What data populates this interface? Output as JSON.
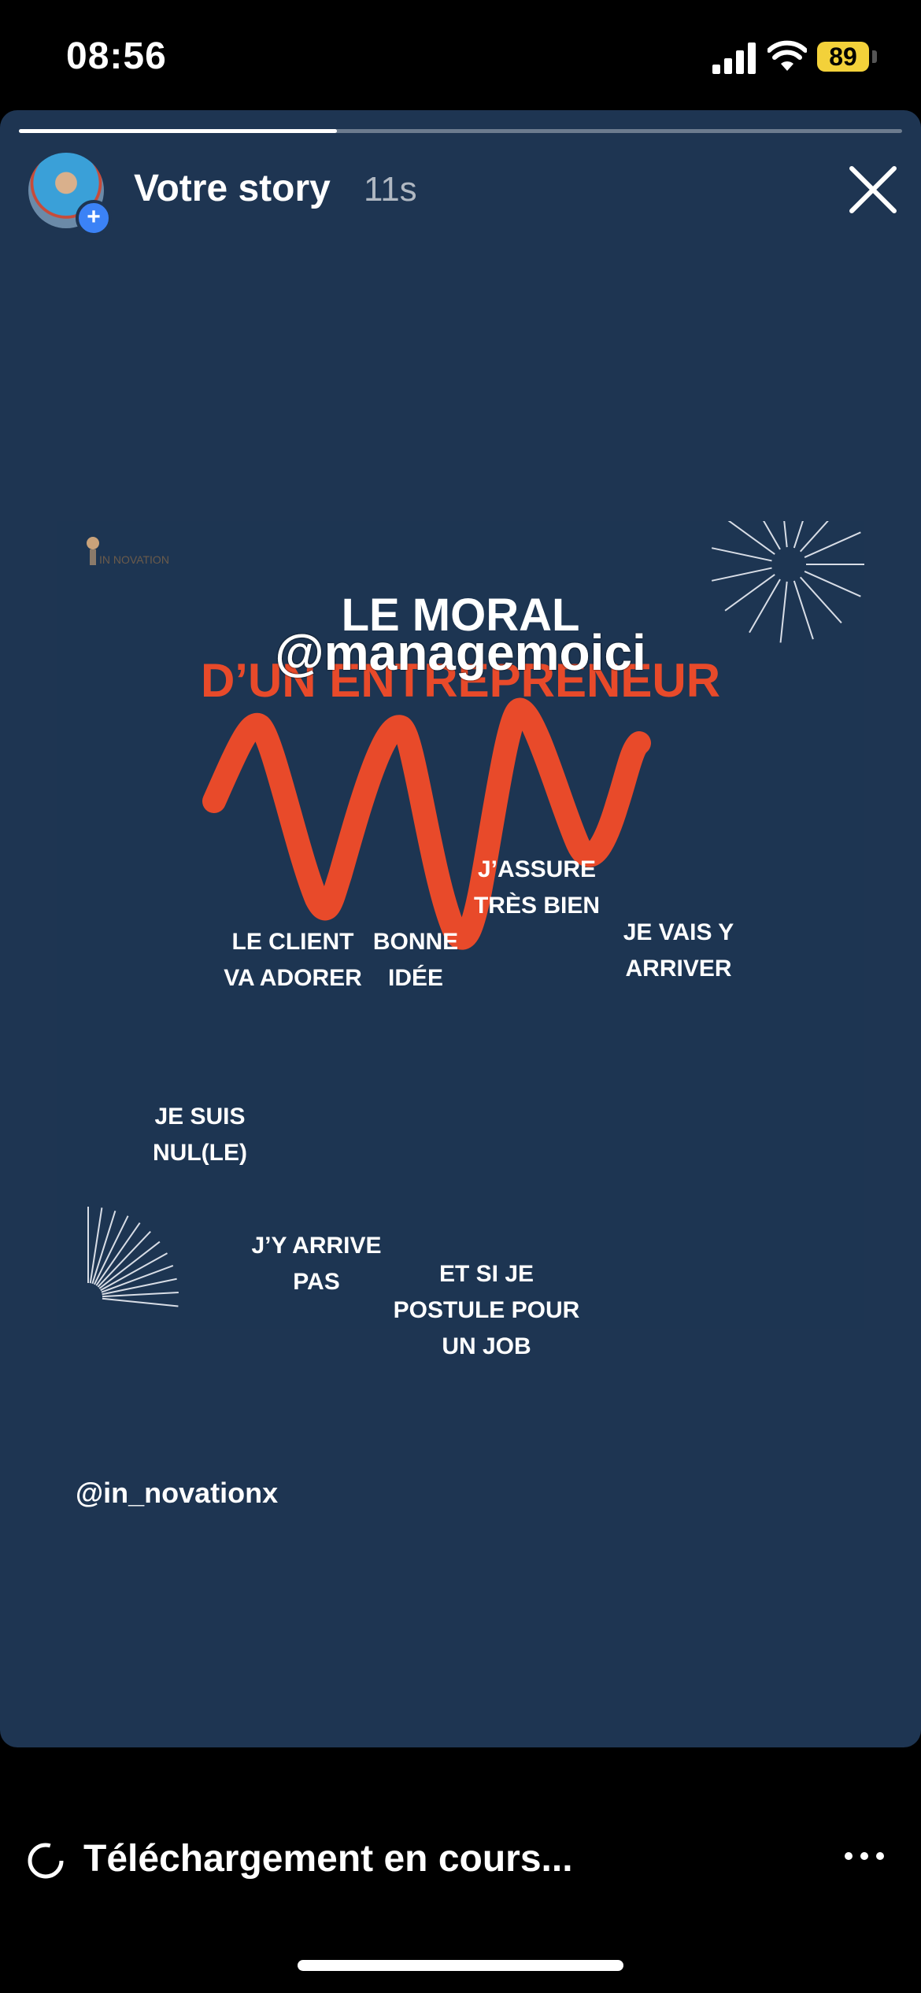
{
  "status": {
    "time": "08:56",
    "battery": "89"
  },
  "story": {
    "title": "Votre story",
    "age": "11s",
    "progress": 0.36,
    "avatar_plus": "+"
  },
  "post": {
    "brand": "IN NOVATION",
    "headline_1": "LE MORAL",
    "mention": "@managemoici",
    "headline_2": "D’UN ENTREPRENEUR",
    "labels": {
      "je_suis": [
        "JE SUIS",
        "NUL(LE)"
      ],
      "le_client": [
        "LE CLIENT",
        "VA ADORER"
      ],
      "jy_arrive": [
        "J’Y ARRIVE",
        "PAS"
      ],
      "bonne": [
        "BONNE",
        "IDÉE"
      ],
      "et_si": [
        "ET SI JE",
        "POSTULE POUR",
        "UN JOB"
      ],
      "jassure": [
        "J’ASSURE",
        "TRÈS BIEN"
      ],
      "je_vais": [
        "JE VAIS Y",
        "ARRIVER"
      ]
    },
    "wave_color": "#e84a2a"
  },
  "credit": "@in_novationx",
  "footer": {
    "upload_status": "Téléchargement en cours..."
  }
}
